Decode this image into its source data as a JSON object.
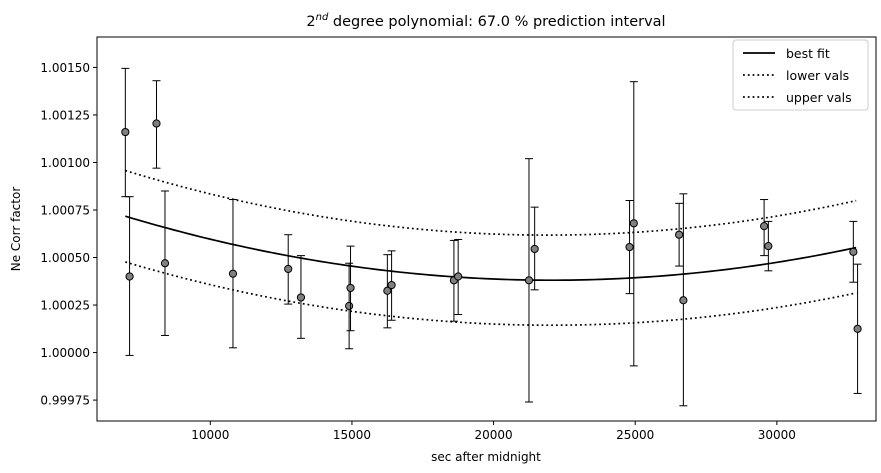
{
  "chart_data": {
    "type": "scatter",
    "title_sup": "nd",
    "title_rest": " degree polynomial: 67.0 % prediction interval",
    "title_lead": "2",
    "xlabel": "sec after midnight",
    "ylabel": "Ne Corr factor",
    "xlim": [
      6000,
      33500
    ],
    "ylim": [
      0.99964,
      1.00166
    ],
    "xticks": [
      10000,
      15000,
      20000,
      25000,
      30000
    ],
    "xtick_labels": [
      "10000",
      "15000",
      "20000",
      "25000",
      "30000"
    ],
    "yticks": [
      0.99975,
      1.0,
      1.00025,
      1.0005,
      1.00075,
      1.001,
      1.00125,
      1.0015
    ],
    "ytick_labels": [
      "0.99975",
      "1.00000",
      "1.00025",
      "1.00050",
      "1.00075",
      "1.00100",
      "1.00125",
      "1.00150"
    ],
    "legend": {
      "placement": "top-right",
      "entries": [
        {
          "label": "best fit",
          "style": "solid"
        },
        {
          "label": "lower vals",
          "style": "dotted"
        },
        {
          "label": "upper vals",
          "style": "dotted"
        }
      ]
    },
    "fit": {
      "x_range": [
        7000,
        32800
      ],
      "best": [
        [
          7000,
          1.00072
        ],
        [
          10000,
          1.000595
        ],
        [
          15000,
          1.00045
        ],
        [
          18500,
          1.000398
        ],
        [
          22000,
          1.000385
        ],
        [
          26000,
          1.000408
        ],
        [
          30000,
          1.00047
        ],
        [
          32800,
          1.000553
        ]
      ],
      "lower": [
        [
          7000,
          1.00048
        ],
        [
          10000,
          1.000355
        ],
        [
          15000,
          1.00021
        ],
        [
          18500,
          1.000163
        ],
        [
          22000,
          1.00015
        ],
        [
          26000,
          1.000168
        ],
        [
          30000,
          1.000235
        ],
        [
          32800,
          1.000313
        ]
      ],
      "upper": [
        [
          7000,
          1.00096
        ],
        [
          10000,
          1.000832
        ],
        [
          15000,
          1.000688
        ],
        [
          18500,
          1.000635
        ],
        [
          22000,
          1.000622
        ],
        [
          26000,
          1.000645
        ],
        [
          30000,
          1.000715
        ],
        [
          32800,
          1.0008
        ]
      ]
    },
    "points": [
      {
        "x": 7000,
        "y": 1.00116,
        "lo": 1.00082,
        "hi": 1.001495
      },
      {
        "x": 7150,
        "y": 1.0004,
        "lo": 0.999985,
        "hi": 1.00082
      },
      {
        "x": 8100,
        "y": 1.001205,
        "lo": 1.00097,
        "hi": 1.00143
      },
      {
        "x": 8400,
        "y": 1.00047,
        "lo": 1.00009,
        "hi": 1.00085
      },
      {
        "x": 10800,
        "y": 1.000415,
        "lo": 1.000025,
        "hi": 1.000805
      },
      {
        "x": 12750,
        "y": 1.00044,
        "lo": 1.000255,
        "hi": 1.00062
      },
      {
        "x": 13200,
        "y": 1.00029,
        "lo": 1.000075,
        "hi": 1.00051
      },
      {
        "x": 14900,
        "y": 1.000245,
        "lo": 1.00002,
        "hi": 1.00047
      },
      {
        "x": 14950,
        "y": 1.00034,
        "lo": 1.000115,
        "hi": 1.00056
      },
      {
        "x": 16250,
        "y": 1.000325,
        "lo": 1.00013,
        "hi": 1.000515
      },
      {
        "x": 16400,
        "y": 1.000355,
        "lo": 1.00017,
        "hi": 1.000535
      },
      {
        "x": 18600,
        "y": 1.00038,
        "lo": 1.000165,
        "hi": 1.00059
      },
      {
        "x": 18750,
        "y": 1.0004,
        "lo": 1.0002,
        "hi": 1.000595
      },
      {
        "x": 21250,
        "y": 1.00038,
        "lo": 0.99974,
        "hi": 1.00102
      },
      {
        "x": 21450,
        "y": 1.000545,
        "lo": 1.00033,
        "hi": 1.000765
      },
      {
        "x": 24800,
        "y": 1.000555,
        "lo": 1.00031,
        "hi": 1.0008
      },
      {
        "x": 24950,
        "y": 1.00068,
        "lo": 0.99993,
        "hi": 1.001425
      },
      {
        "x": 26550,
        "y": 1.00062,
        "lo": 1.000455,
        "hi": 1.000785
      },
      {
        "x": 26700,
        "y": 1.000275,
        "lo": 0.99972,
        "hi": 1.000835
      },
      {
        "x": 29550,
        "y": 1.000665,
        "lo": 1.00051,
        "hi": 1.000805
      },
      {
        "x": 29700,
        "y": 1.00056,
        "lo": 1.00043,
        "hi": 1.00069
      },
      {
        "x": 32700,
        "y": 1.00053,
        "lo": 1.00037,
        "hi": 1.00069
      },
      {
        "x": 32850,
        "y": 1.000125,
        "lo": 0.999785,
        "hi": 1.000465
      }
    ],
    "marker_color": "#808080",
    "line_color": "#000000",
    "grid": false
  }
}
